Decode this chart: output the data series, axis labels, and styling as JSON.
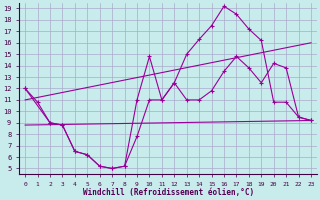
{
  "xlabel": "Windchill (Refroidissement éolien,°C)",
  "background_color": "#c8ecec",
  "grid_color": "#aaaacc",
  "line_color": "#990099",
  "xlim": [
    0,
    23
  ],
  "ylim": [
    5,
    19
  ],
  "yticks": [
    5,
    6,
    7,
    8,
    9,
    10,
    11,
    12,
    13,
    14,
    15,
    16,
    17,
    18,
    19
  ],
  "xticks": [
    0,
    1,
    2,
    3,
    4,
    5,
    6,
    7,
    8,
    9,
    10,
    11,
    12,
    13,
    14,
    15,
    16,
    17,
    18,
    19,
    20,
    21,
    22,
    23
  ],
  "curve1_x": [
    0,
    1,
    2,
    3,
    4,
    5,
    6,
    7,
    8,
    9,
    10,
    11,
    12,
    13,
    14,
    15,
    16,
    17,
    18,
    19,
    20,
    21,
    22,
    23
  ],
  "curve1_y": [
    12.0,
    10.8,
    9.0,
    8.8,
    6.5,
    6.2,
    5.2,
    5.0,
    5.2,
    11.0,
    14.8,
    11.0,
    12.5,
    15.0,
    16.3,
    17.5,
    19.2,
    18.5,
    17.2,
    16.2,
    10.8,
    10.8,
    9.5,
    9.2
  ],
  "curve2_x": [
    0,
    2,
    3,
    4,
    5,
    6,
    7,
    8,
    9,
    10,
    11,
    12,
    13,
    14,
    15,
    16,
    17,
    18,
    19,
    20,
    21,
    22,
    23
  ],
  "curve2_y": [
    12.0,
    9.0,
    8.8,
    6.5,
    6.2,
    5.2,
    5.0,
    5.2,
    7.8,
    11.0,
    11.0,
    12.5,
    11.0,
    11.0,
    11.8,
    13.5,
    14.8,
    13.8,
    12.5,
    14.2,
    13.8,
    9.5,
    9.2
  ],
  "line3_x": [
    0,
    23
  ],
  "line3_y": [
    11.0,
    16.0
  ],
  "line4_x": [
    0,
    23
  ],
  "line4_y": [
    8.8,
    9.2
  ]
}
